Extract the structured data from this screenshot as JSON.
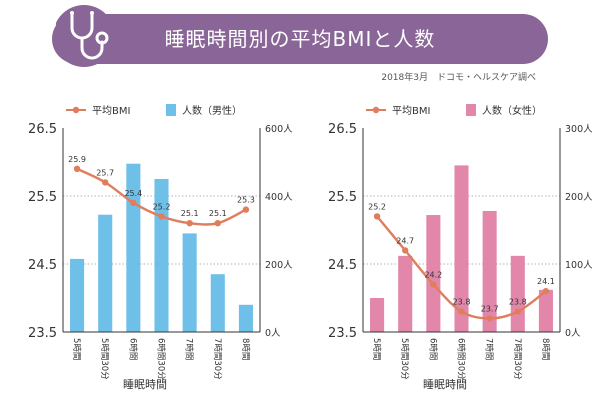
{
  "header": {
    "title": "睡眠時間別の平均BMIと人数",
    "source": "2018年3月　ドコモ・ヘルスケア調べ"
  },
  "colors": {
    "title_bg": "#8a6597",
    "line": "#e07d5c",
    "bar_male": "#6fc0e8",
    "bar_female": "#e287aa",
    "grid": "#999999"
  },
  "chart_data": [
    {
      "type": "bar+line",
      "xlabel": "睡眠時間",
      "categories": [
        "5時間",
        "5時間30分",
        "6時間",
        "6時間30分",
        "7時間",
        "7時間30分",
        "8時間"
      ],
      "y_left": {
        "ticks": [
          "26.5",
          "25.5",
          "24.5",
          "23.5"
        ],
        "ylim": [
          23.5,
          26.5
        ]
      },
      "y_right": {
        "ticks": [
          "600人",
          "400人",
          "200人",
          "0人"
        ],
        "ylim": [
          0,
          600
        ]
      },
      "legend": {
        "line": "平均BMI",
        "bar": "人数（男性）"
      },
      "series": [
        {
          "name": "平均BMI",
          "kind": "line",
          "axis": "left",
          "values": [
            25.9,
            25.7,
            25.4,
            25.2,
            25.1,
            25.1,
            25.3
          ],
          "labels": [
            "25.9",
            "25.7",
            "25.4",
            "25.2",
            "25.1",
            "25.1",
            "25.3"
          ]
        },
        {
          "name": "人数（男性）",
          "kind": "bar",
          "axis": "right",
          "values": [
            215,
            345,
            495,
            450,
            290,
            170,
            80
          ]
        }
      ]
    },
    {
      "type": "bar+line",
      "xlabel": "睡眠時間",
      "categories": [
        "5時間",
        "5時間30分",
        "6時間",
        "6時間30分",
        "7時間",
        "7時間30分",
        "8時間"
      ],
      "y_left": {
        "ticks": [
          "26.5",
          "25.5",
          "24.5",
          "23.5"
        ],
        "ylim": [
          23.5,
          26.5
        ]
      },
      "y_right": {
        "ticks": [
          "300人",
          "200人",
          "100人",
          "0人"
        ],
        "ylim": [
          0,
          300
        ]
      },
      "legend": {
        "line": "平均BMI",
        "bar": "人数（女性）"
      },
      "series": [
        {
          "name": "平均BMI",
          "kind": "line",
          "axis": "left",
          "values": [
            25.2,
            24.7,
            24.2,
            23.8,
            23.7,
            23.8,
            24.1
          ],
          "labels": [
            "25.2",
            "24.7",
            "24.2",
            "23.8",
            "23.7",
            "23.8",
            "24.1"
          ]
        },
        {
          "name": "人数（女性）",
          "kind": "bar",
          "axis": "right",
          "values": [
            50,
            112,
            172,
            245,
            178,
            112,
            62
          ]
        }
      ]
    }
  ]
}
